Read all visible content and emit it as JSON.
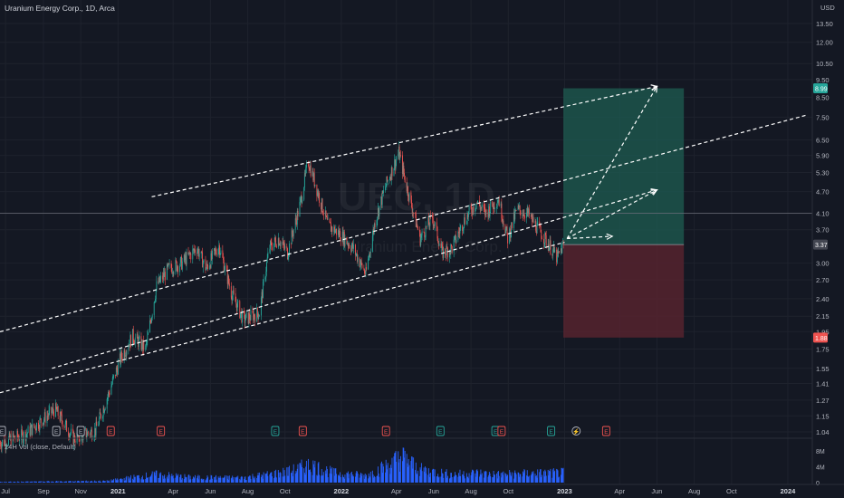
{
  "header": {
    "title": "Uranium Energy Corp., 1D, Arca",
    "volume_title": "24H Vol (close, Default)"
  },
  "watermark": "UEC, 1D",
  "watermark_sub": "Uranium Energy Corp.",
  "colors": {
    "background": "#141823",
    "up": "#26a69a",
    "down": "#ef5350",
    "volume": "#2962ff",
    "profit_zone": "#1e5c52",
    "loss_zone": "#5e2430",
    "price_tag": "#434651",
    "grid": "#1e222d",
    "axis_text": "#b2b5be"
  },
  "chart_data": {
    "type": "candlestick",
    "symbol": "UEC",
    "interval": "1D",
    "exchange": "Arca",
    "currency": "USD",
    "y_scale": "log",
    "y_ticks": [
      "13.50",
      "12.00",
      "10.50",
      "9.50",
      "8.50",
      "7.50",
      "6.50",
      "5.90",
      "5.30",
      "4.70",
      "4.10",
      "3.70",
      "3.00",
      "2.70",
      "2.40",
      "2.15",
      "1.95",
      "1.75",
      "1.55",
      "1.41",
      "1.27",
      "1.15",
      "1.04"
    ],
    "y_tick_values": [
      13.5,
      12.0,
      10.5,
      9.5,
      8.5,
      7.5,
      6.5,
      5.9,
      5.3,
      4.7,
      4.1,
      3.7,
      3.0,
      2.7,
      2.4,
      2.15,
      1.95,
      1.75,
      1.55,
      1.41,
      1.27,
      1.15,
      1.04
    ],
    "y_axis_unit": "USD",
    "x_ticks": [
      "Jul",
      "Sep",
      "Nov",
      "2021",
      "Apr",
      "Jun",
      "Aug",
      "Oct",
      "2022",
      "Apr",
      "Jun",
      "Aug",
      "Oct",
      "2023",
      "Apr",
      "Jun",
      "Aug",
      "Oct",
      "2024"
    ],
    "x_tick_dates": [
      "2020-07-01",
      "2020-09-01",
      "2020-11-01",
      "2021-01-01",
      "2021-04-01",
      "2021-06-01",
      "2021-08-01",
      "2021-10-01",
      "2022-01-01",
      "2022-04-01",
      "2022-06-01",
      "2022-08-01",
      "2022-10-01",
      "2023-01-01",
      "2023-04-01",
      "2023-06-01",
      "2023-08-01",
      "2023-10-01",
      "2024-01-01"
    ],
    "price_path": [
      [
        "2020-06-22",
        0.97
      ],
      [
        "2020-08-01",
        1.02
      ],
      [
        "2020-09-20",
        1.2
      ],
      [
        "2020-10-20",
        1.0
      ],
      [
        "2020-11-25",
        1.05
      ],
      [
        "2020-12-15",
        1.3
      ],
      [
        "2021-01-05",
        1.65
      ],
      [
        "2021-01-25",
        1.9
      ],
      [
        "2021-02-15",
        1.75
      ],
      [
        "2021-03-05",
        2.6
      ],
      [
        "2021-03-25",
        2.9
      ],
      [
        "2021-04-15",
        3.0
      ],
      [
        "2021-05-10",
        3.3
      ],
      [
        "2021-05-25",
        2.9
      ],
      [
        "2021-06-15",
        3.35
      ],
      [
        "2021-07-05",
        2.5
      ],
      [
        "2021-07-25",
        2.1
      ],
      [
        "2021-08-20",
        2.2
      ],
      [
        "2021-09-05",
        3.3
      ],
      [
        "2021-09-20",
        3.5
      ],
      [
        "2021-10-05",
        3.2
      ],
      [
        "2021-10-25",
        4.3
      ],
      [
        "2021-11-08",
        5.7
      ],
      [
        "2021-11-25",
        4.6
      ],
      [
        "2021-12-10",
        3.8
      ],
      [
        "2021-12-30",
        3.6
      ],
      [
        "2022-01-20",
        3.3
      ],
      [
        "2022-02-10",
        2.8
      ],
      [
        "2022-02-25",
        3.9
      ],
      [
        "2022-03-15",
        4.9
      ],
      [
        "2022-04-05",
        6.0
      ],
      [
        "2022-04-20",
        4.7
      ],
      [
        "2022-05-10",
        3.5
      ],
      [
        "2022-05-30",
        4.0
      ],
      [
        "2022-06-15",
        3.2
      ],
      [
        "2022-07-01",
        3.3
      ],
      [
        "2022-07-20",
        3.9
      ],
      [
        "2022-08-10",
        4.4
      ],
      [
        "2022-08-25",
        4.1
      ],
      [
        "2022-09-15",
        4.5
      ],
      [
        "2022-09-30",
        3.5
      ],
      [
        "2022-10-15",
        4.2
      ],
      [
        "2022-11-01",
        4.1
      ],
      [
        "2022-11-20",
        3.7
      ],
      [
        "2022-12-05",
        3.4
      ],
      [
        "2022-12-20",
        3.1
      ],
      [
        "2022-12-30",
        3.37
      ]
    ],
    "last_price": 3.37,
    "price_tags": [
      {
        "label": "8.99",
        "value": 8.99,
        "role": "take-profit"
      },
      {
        "label": "3.37",
        "value": 3.37,
        "role": "last-price"
      },
      {
        "label": "1.88",
        "value": 1.88,
        "role": "stop-loss"
      }
    ],
    "channel_lines": [
      {
        "start": [
          "2020-06-22",
          1.95
        ],
        "end": [
          "2024-02-01",
          7.6
        ]
      },
      {
        "start": [
          "2020-06-22",
          1.33
        ],
        "end": [
          "2023-01-01",
          3.42
        ]
      },
      {
        "start": [
          "2020-09-15",
          1.55
        ],
        "end": [
          "2023-06-01",
          4.75
        ]
      },
      {
        "start": [
          "2021-02-25",
          4.55
        ],
        "end": [
          "2023-06-01",
          9.1
        ]
      }
    ],
    "projection_arrows": [
      {
        "start": [
          "2023-01-05",
          3.5
        ],
        "end": [
          "2023-06-01",
          9.1
        ]
      },
      {
        "start": [
          "2023-01-05",
          3.5
        ],
        "end": [
          "2023-06-01",
          4.75
        ]
      },
      {
        "start": [
          "2023-01-05",
          3.5
        ],
        "end": [
          "2023-03-20",
          3.55
        ]
      }
    ],
    "position": {
      "type": "long",
      "entry": 3.37,
      "target": 8.99,
      "stop": 1.88,
      "horizontal_level": 4.1,
      "start": "2022-12-30",
      "end": "2023-07-15"
    },
    "event_markers": [
      {
        "date": "2020-06-25",
        "label": "E",
        "color": "#b2b5be"
      },
      {
        "date": "2020-09-22",
        "label": "E",
        "color": "#b2b5be"
      },
      {
        "date": "2020-11-01",
        "label": "E",
        "color": "#b2b5be"
      },
      {
        "date": "2020-12-20",
        "label": "E",
        "color": "#ef5350"
      },
      {
        "date": "2021-03-12",
        "label": "E",
        "color": "#ef5350"
      },
      {
        "date": "2021-09-15",
        "label": "E",
        "color": "#26a69a"
      },
      {
        "date": "2021-10-30",
        "label": "E",
        "color": "#ef5350"
      },
      {
        "date": "2022-03-15",
        "label": "E",
        "color": "#ef5350"
      },
      {
        "date": "2022-06-12",
        "label": "E",
        "color": "#26a69a"
      },
      {
        "date": "2022-09-10",
        "label": "E",
        "color": "#26a69a"
      },
      {
        "date": "2022-09-20",
        "label": "E",
        "color": "#ef5350"
      },
      {
        "date": "2022-12-10",
        "label": "E",
        "color": "#26a69a"
      },
      {
        "date": "2023-01-20",
        "label": "⚡",
        "color": "#b2b5be"
      },
      {
        "date": "2023-03-10",
        "label": "E",
        "color": "#ef5350"
      }
    ],
    "volume": {
      "title": "24H Vol (close, Default)",
      "y_ticks": [
        "8M",
        "4M",
        "0"
      ],
      "y_tick_values": [
        8,
        4,
        0
      ],
      "unit": "millions",
      "profile": [
        [
          "2020-06-22",
          0.2
        ],
        [
          "2020-12-15",
          0.5
        ],
        [
          "2021-01-20",
          1.5
        ],
        [
          "2021-03-05",
          2.5
        ],
        [
          "2021-05-01",
          1.6
        ],
        [
          "2021-07-20",
          1.5
        ],
        [
          "2021-09-05",
          2.5
        ],
        [
          "2021-10-10",
          3.5
        ],
        [
          "2021-11-10",
          5.5
        ],
        [
          "2021-12-20",
          3.0
        ],
        [
          "2022-02-10",
          2.2
        ],
        [
          "2022-03-15",
          5.0
        ],
        [
          "2022-04-10",
          8.0
        ],
        [
          "2022-05-10",
          4.0
        ],
        [
          "2022-07-01",
          2.5
        ],
        [
          "2022-08-10",
          3.0
        ],
        [
          "2022-09-15",
          2.5
        ],
        [
          "2022-11-01",
          2.8
        ],
        [
          "2022-12-30",
          3.0
        ]
      ]
    }
  }
}
